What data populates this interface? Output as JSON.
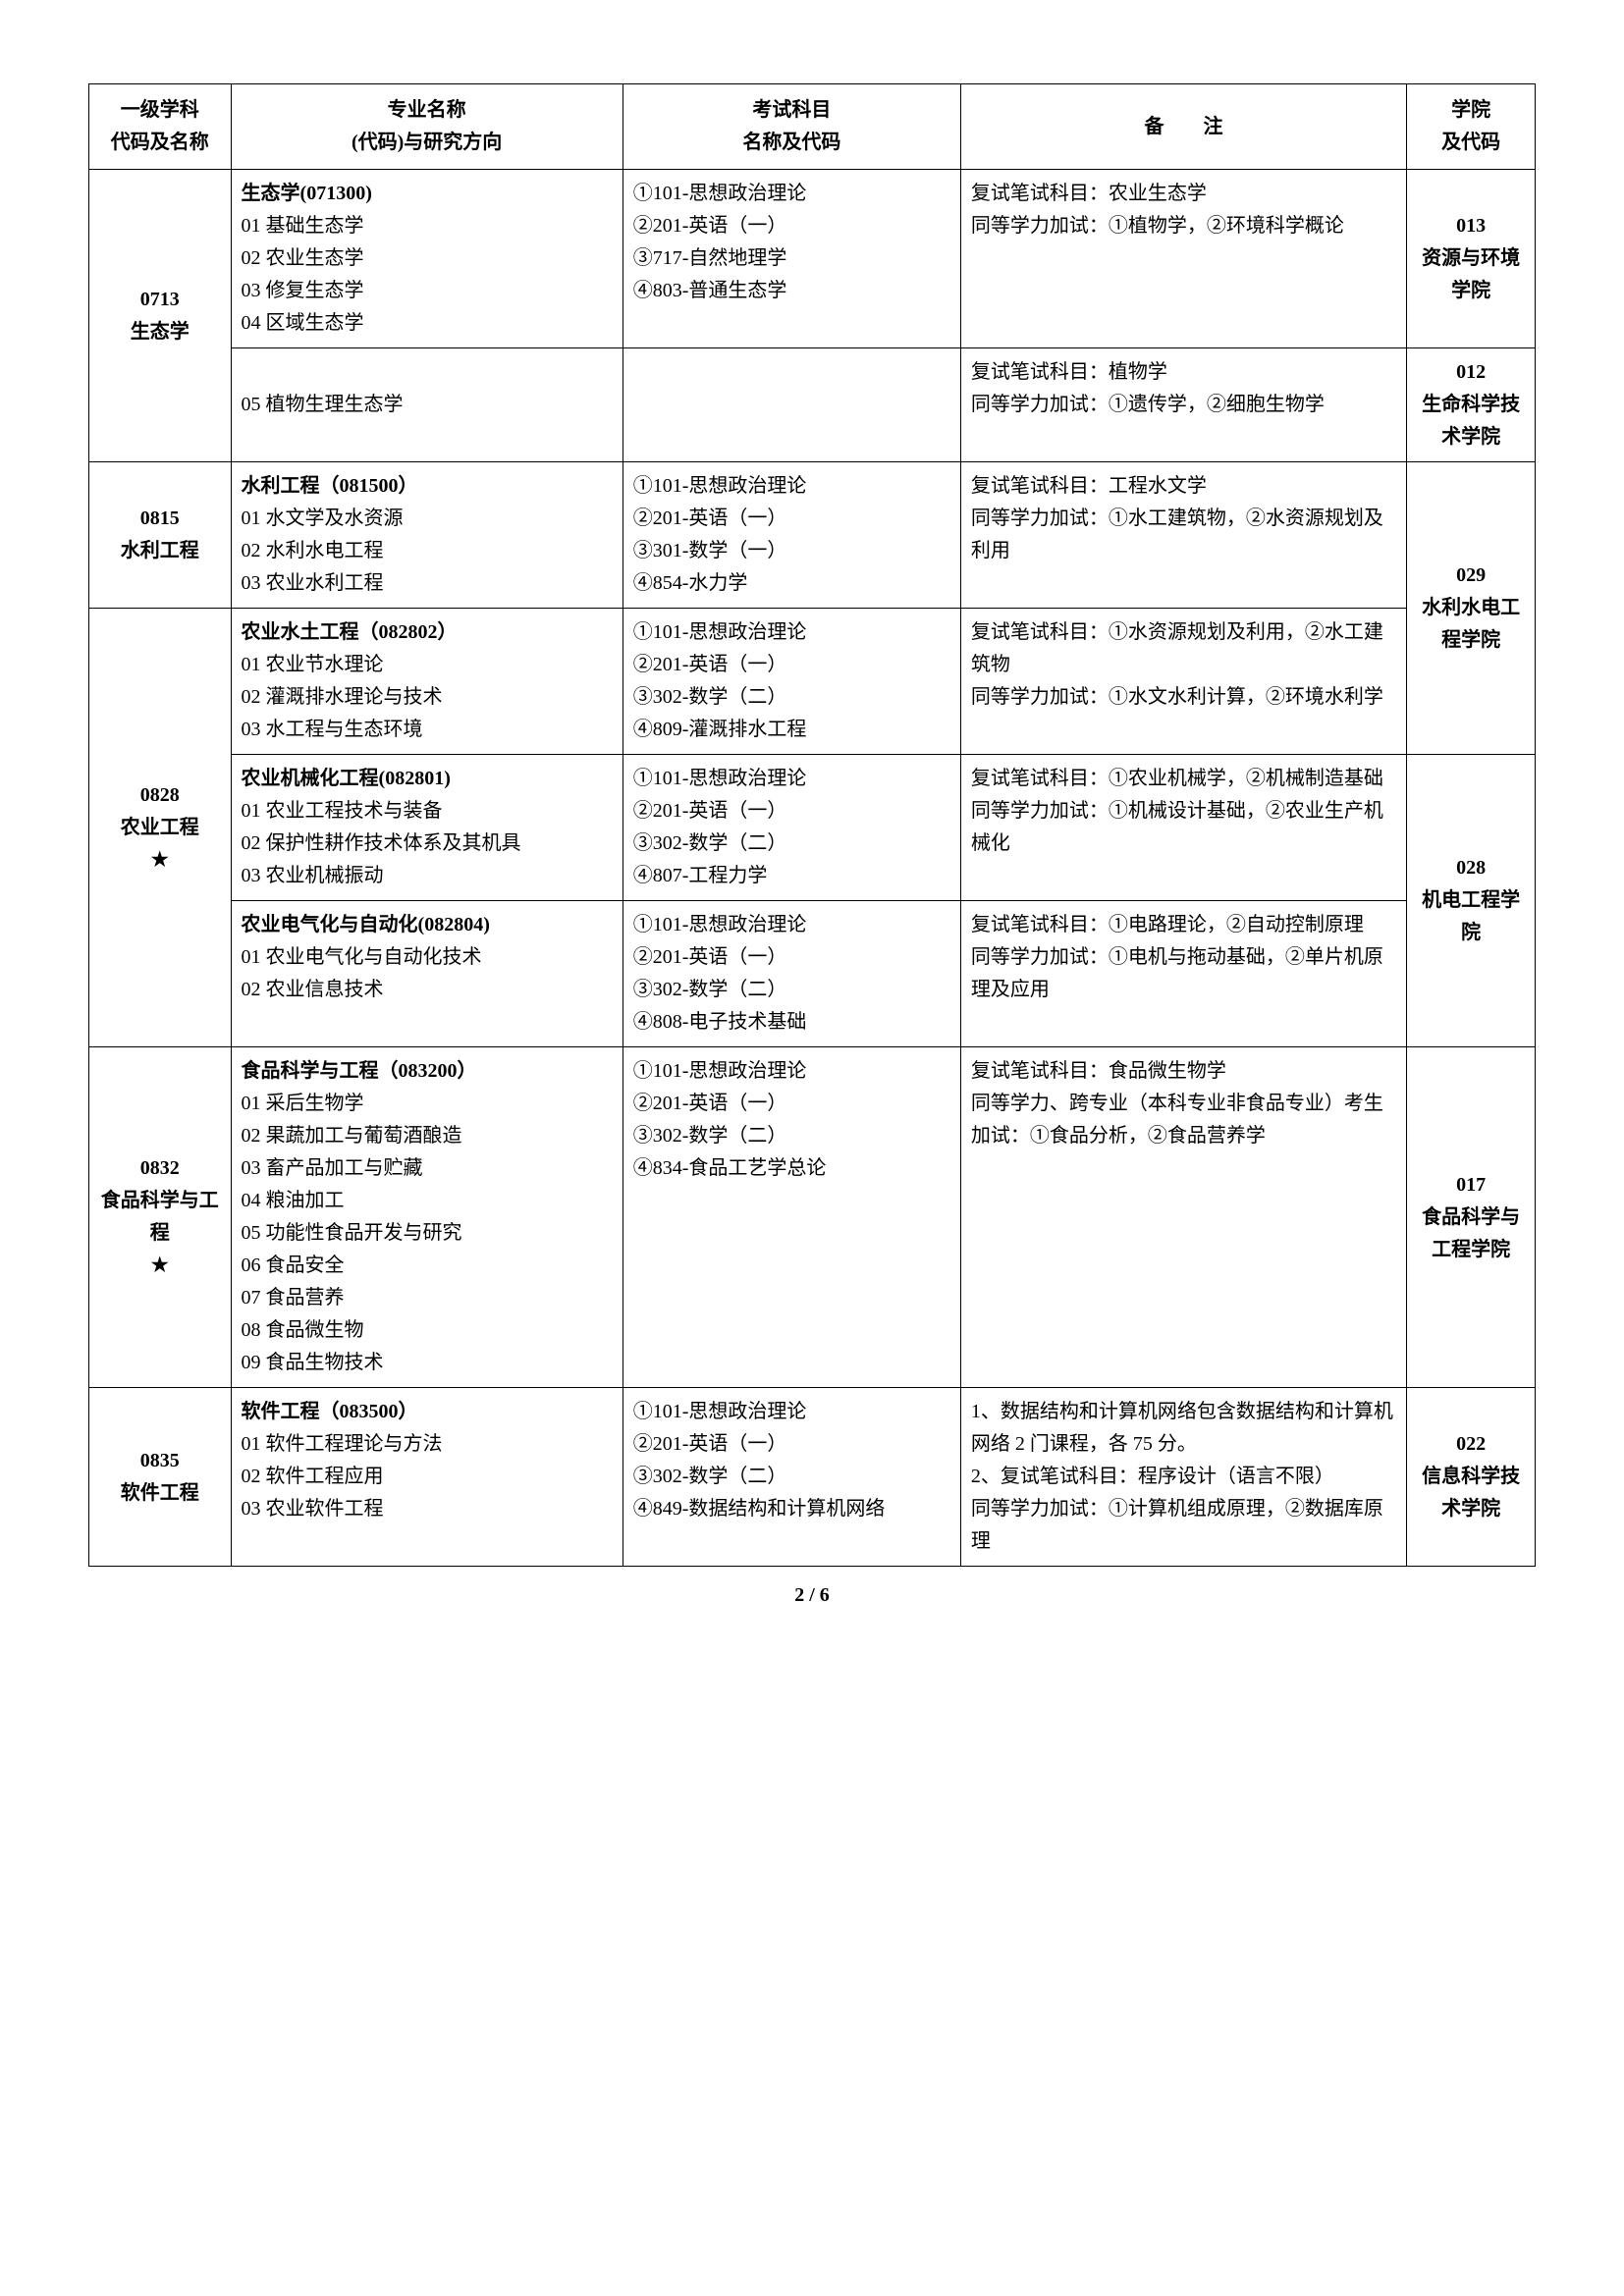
{
  "header": {
    "col1_line1": "一级学科",
    "col1_line2": "代码及名称",
    "col2_line1": "专业名称",
    "col2_line2": "(代码)与研究方向",
    "col3_line1": "考试科目",
    "col3_line2": "名称及代码",
    "col4": "备　　注",
    "col5_line1": "学院",
    "col5_line2": "及代码"
  },
  "rows": [
    {
      "disc_code": "0713",
      "disc_name": "生态学",
      "sub": [
        {
          "major_title": "生态学(071300)",
          "directions": [
            "01 基础生态学",
            "02 农业生态学",
            "03 修复生态学",
            "04 区域生态学"
          ],
          "exams": [
            "①101-思想政治理论",
            "②201-英语（一）",
            "③717-自然地理学",
            "④803-普通生态学"
          ],
          "notes": [
            "复试笔试科目：农业生态学",
            "同等学力加试：①植物学，②环境科学概论"
          ],
          "school_code": "013",
          "school_name": "资源与环境学院"
        },
        {
          "major_title": "",
          "directions": [
            "05 植物生理生态学"
          ],
          "exams": [],
          "notes": [
            "复试笔试科目：植物学",
            "同等学力加试：①遗传学，②细胞生物学"
          ],
          "school_code": "012",
          "school_name": "生命科学技术学院"
        }
      ]
    },
    {
      "disc_code": "0815",
      "disc_name": "水利工程",
      "sub": [
        {
          "major_title": "水利工程（081500）",
          "directions": [
            "01 水文学及水资源",
            "02 水利水电工程",
            "03 农业水利工程"
          ],
          "exams": [
            "①101-思想政治理论",
            "②201-英语（一）",
            "③301-数学（一）",
            "④854-水力学"
          ],
          "notes": [
            "复试笔试科目：工程水文学",
            "同等学力加试：①水工建筑物，②水资源规划及利用"
          ],
          "school_code": "029",
          "school_name": "水利水电工程学院",
          "school_rowspan": 2
        }
      ]
    },
    {
      "disc_code": "0828",
      "disc_name": "农业工程",
      "disc_star": "★",
      "sub": [
        {
          "major_title": "农业水土工程（082802）",
          "directions": [
            "01 农业节水理论",
            "02 灌溉排水理论与技术",
            "03 水工程与生态环境"
          ],
          "exams": [
            "①101-思想政治理论",
            "②201-英语（一）",
            "③302-数学（二）",
            "④809-灌溉排水工程"
          ],
          "notes": [
            "复试笔试科目：①水资源规划及利用，②水工建筑物",
            "同等学力加试：①水文水利计算，②环境水利学"
          ],
          "school_in_prev": true
        },
        {
          "major_title": "农业机械化工程(082801)",
          "directions": [
            "01 农业工程技术与装备",
            "02 保护性耕作技术体系及其机具",
            "03 农业机械振动"
          ],
          "exams": [
            "①101-思想政治理论",
            "②201-英语（一）",
            "③302-数学（二）",
            "④807-工程力学"
          ],
          "notes": [
            "复试笔试科目：①农业机械学，②机械制造基础",
            "同等学力加试：①机械设计基础，②农业生产机械化"
          ],
          "school_code": "028",
          "school_name": "机电工程学院",
          "school_rowspan": 2
        },
        {
          "major_title": "农业电气化与自动化(082804)",
          "directions": [
            "01 农业电气化与自动化技术",
            "02 农业信息技术"
          ],
          "exams": [
            "①101-思想政治理论",
            "②201-英语（一）",
            "③302-数学（二）",
            "④808-电子技术基础"
          ],
          "notes": [
            "复试笔试科目：①电路理论，②自动控制原理",
            "同等学力加试：①电机与拖动基础，②单片机原理及应用"
          ],
          "school_in_prev": true
        }
      ]
    },
    {
      "disc_code": "0832",
      "disc_name": "食品科学与工程",
      "disc_star": "★",
      "sub": [
        {
          "major_title": "食品科学与工程（083200）",
          "directions": [
            "01 采后生物学",
            "02 果蔬加工与葡萄酒酿造",
            "03 畜产品加工与贮藏",
            "04 粮油加工",
            "05 功能性食品开发与研究",
            "06 食品安全",
            "07 食品营养",
            "08 食品微生物",
            "09 食品生物技术"
          ],
          "exams": [
            "①101-思想政治理论",
            "②201-英语（一）",
            "③302-数学（二）",
            "④834-食品工艺学总论"
          ],
          "notes": [
            "复试笔试科目：食品微生物学",
            "同等学力、跨专业（本科专业非食品专业）考生加试：①食品分析，②食品营养学"
          ],
          "school_code": "017",
          "school_name": "食品科学与工程学院"
        }
      ]
    },
    {
      "disc_code": "0835",
      "disc_name": "软件工程",
      "sub": [
        {
          "major_title": "软件工程（083500）",
          "directions": [
            "01 软件工程理论与方法",
            "02 软件工程应用",
            "03 农业软件工程"
          ],
          "exams": [
            "①101-思想政治理论",
            "②201-英语（一）",
            "③302-数学（二）",
            "④849-数据结构和计算机网络"
          ],
          "notes": [
            "1、数据结构和计算机网络包含数据结构和计算机网络 2 门课程，各 75 分。",
            "2、复试笔试科目：程序设计（语言不限）",
            "同等学力加试：①计算机组成原理，②数据库原理"
          ],
          "school_code": "022",
          "school_name": "信息科学技术学院"
        }
      ]
    }
  ],
  "footer": "2 / 6"
}
